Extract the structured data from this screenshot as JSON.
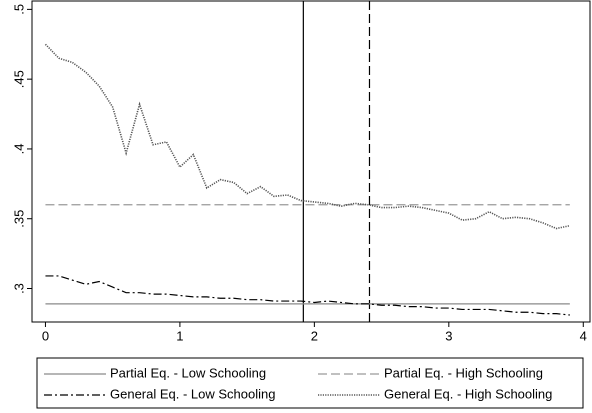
{
  "chart_data": {
    "type": "line",
    "x": [
      0,
      0.1,
      0.2,
      0.3,
      0.4,
      0.5,
      0.6,
      0.7,
      0.8,
      0.9,
      1.0,
      1.1,
      1.2,
      1.3,
      1.4,
      1.5,
      1.6,
      1.7,
      1.8,
      1.9,
      2.0,
      2.1,
      2.2,
      2.3,
      2.4,
      2.5,
      2.6,
      2.7,
      2.8,
      2.9,
      3.0,
      3.1,
      3.2,
      3.3,
      3.4,
      3.5,
      3.6,
      3.7,
      3.8,
      3.9
    ],
    "series": [
      {
        "name": "Partial Eq. - Low Schooling",
        "color": "#8a8a8a",
        "dash": "solid",
        "values": [
          0.289,
          0.289,
          0.289,
          0.289,
          0.289,
          0.289,
          0.289,
          0.289,
          0.289,
          0.289,
          0.289,
          0.289,
          0.289,
          0.289,
          0.289,
          0.289,
          0.289,
          0.289,
          0.289,
          0.289,
          0.289,
          0.289,
          0.289,
          0.289,
          0.289,
          0.289,
          0.289,
          0.289,
          0.289,
          0.289,
          0.289,
          0.289,
          0.289,
          0.289,
          0.289,
          0.289,
          0.289,
          0.289,
          0.289,
          0.289
        ]
      },
      {
        "name": "Partial Eq. - High Schooling",
        "color": "#9a9a9a",
        "dash": "longdash",
        "values": [
          0.36,
          0.36,
          0.36,
          0.36,
          0.36,
          0.36,
          0.36,
          0.36,
          0.36,
          0.36,
          0.36,
          0.36,
          0.36,
          0.36,
          0.36,
          0.36,
          0.36,
          0.36,
          0.36,
          0.36,
          0.36,
          0.36,
          0.36,
          0.36,
          0.36,
          0.36,
          0.36,
          0.36,
          0.36,
          0.36,
          0.36,
          0.36,
          0.36,
          0.36,
          0.36,
          0.36,
          0.36,
          0.36,
          0.36,
          0.36
        ]
      },
      {
        "name": "General Eq. - Low Schooling",
        "color": "#000000",
        "dash": "dashdot",
        "values": [
          0.309,
          0.309,
          0.306,
          0.303,
          0.305,
          0.301,
          0.297,
          0.297,
          0.296,
          0.296,
          0.295,
          0.294,
          0.294,
          0.293,
          0.293,
          0.292,
          0.292,
          0.291,
          0.291,
          0.291,
          0.29,
          0.291,
          0.29,
          0.289,
          0.289,
          0.288,
          0.288,
          0.287,
          0.287,
          0.286,
          0.286,
          0.285,
          0.285,
          0.285,
          0.284,
          0.283,
          0.283,
          0.282,
          0.282,
          0.281
        ]
      },
      {
        "name": "General Eq. - High Schooling",
        "color": "#555555",
        "dash": "dotted",
        "values": [
          0.475,
          0.465,
          0.462,
          0.455,
          0.445,
          0.43,
          0.397,
          0.432,
          0.403,
          0.405,
          0.387,
          0.396,
          0.372,
          0.378,
          0.376,
          0.368,
          0.373,
          0.366,
          0.367,
          0.363,
          0.362,
          0.361,
          0.359,
          0.361,
          0.36,
          0.358,
          0.358,
          0.359,
          0.358,
          0.356,
          0.354,
          0.349,
          0.35,
          0.355,
          0.35,
          0.351,
          0.35,
          0.347,
          0.343,
          0.345
        ]
      }
    ],
    "vlines": [
      {
        "value": 1.918,
        "dash": "solid"
      },
      {
        "value": 2.41,
        "dash": "longdash"
      }
    ],
    "xlim": [
      -0.1,
      4.05
    ],
    "xticks": [
      0,
      1,
      2,
      3,
      4
    ],
    "ylim": [
      0.276,
      0.506
    ],
    "yticks": [
      {
        "value": 0.3,
        "label": ".3"
      },
      {
        "value": 0.35,
        "label": ".35"
      },
      {
        "value": 0.4,
        "label": ".4"
      },
      {
        "value": 0.45,
        "label": ".45"
      },
      {
        "value": 0.5,
        "label": ".5"
      }
    ],
    "grid": false,
    "legend": "bottom"
  }
}
